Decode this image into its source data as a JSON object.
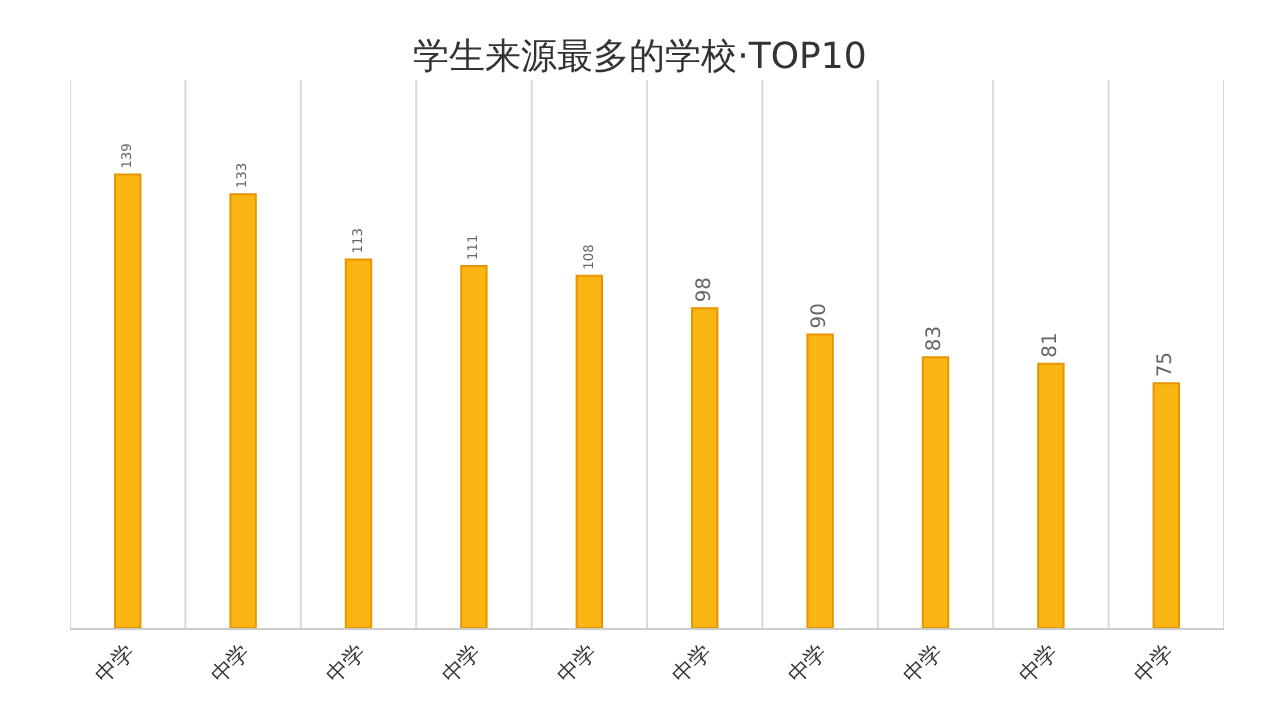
{
  "chart_data": {
    "type": "bar",
    "title": "学生来源最多的学校·TOP10",
    "categories": [
      "中学",
      "中学",
      "中学",
      "中学",
      "中学",
      "中学",
      "中学",
      "中学",
      "中学",
      "中学"
    ],
    "values": [
      139,
      133,
      113,
      111,
      108,
      98,
      90,
      83,
      81,
      75
    ],
    "color": "#fbb512",
    "ylim": [
      0,
      168
    ],
    "data_labels": true,
    "grid": "x",
    "tick_labels": "x",
    "legend": false
  }
}
